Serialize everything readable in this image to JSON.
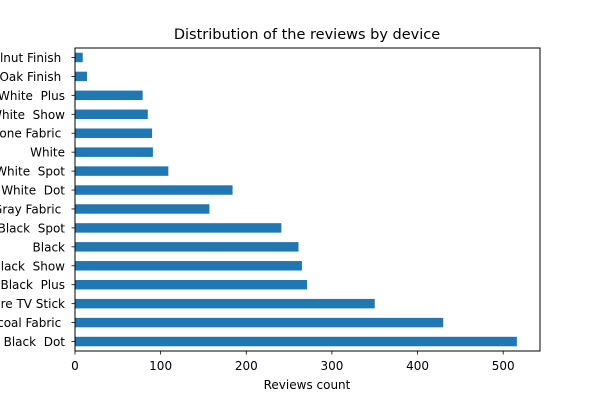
{
  "chart_data": {
    "type": "bar",
    "orientation": "horizontal",
    "title": "Distribution of the reviews by device",
    "xlabel": "Reviews count",
    "ylabel": "",
    "xlim": [
      0,
      543
    ],
    "xticks": [
      0,
      100,
      200,
      300,
      400,
      500
    ],
    "grid": false,
    "bar_color": "#1f77b4",
    "categories": [
      "Black  Dot",
      "Charcoal Fabric ",
      "Configuration: Fire TV Stick",
      "Black  Plus",
      "Black  Show",
      "Black",
      "Black  Spot",
      "Heather Gray Fabric ",
      "White  Dot",
      "White  Spot",
      "White",
      "Sandstone Fabric ",
      "White  Show",
      "White  Plus",
      "Oak Finish ",
      "Walnut Finish "
    ],
    "values": [
      516,
      430,
      350,
      271,
      265,
      261,
      241,
      157,
      184,
      109,
      91,
      90,
      85,
      79,
      14,
      9
    ]
  }
}
